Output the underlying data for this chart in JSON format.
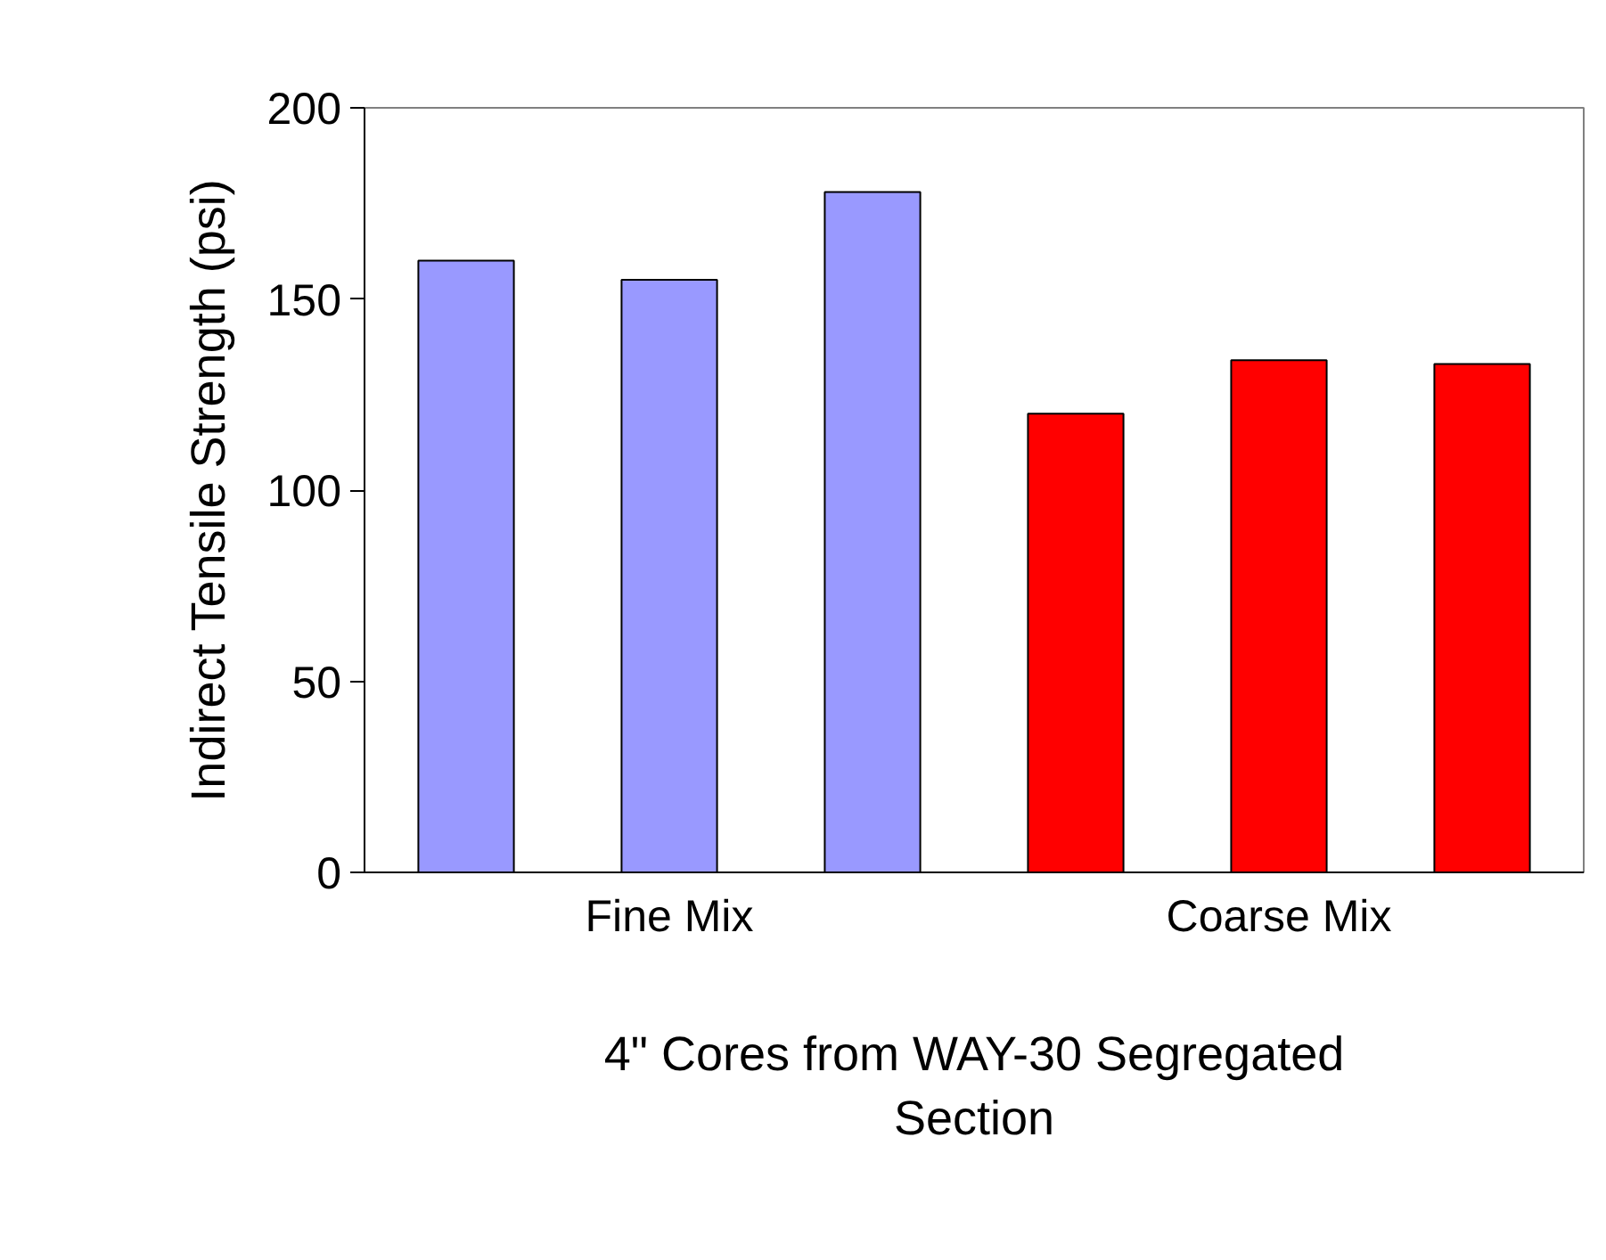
{
  "chart_data": {
    "type": "bar",
    "xlabel": "4\" Cores from WAY-30 Segregated Section",
    "ylabel": "Indirect Tensile Strength (psi)",
    "categories": [
      null,
      "Fine Mix",
      null,
      null,
      "Coarse Mix",
      null
    ],
    "values": [
      160,
      155,
      178,
      120,
      134,
      133
    ],
    "colors": [
      "#9999ff",
      "#9999ff",
      "#9999ff",
      "#ff0000",
      "#ff0000",
      "#ff0000"
    ],
    "ylim": [
      0,
      200
    ],
    "yticks": [
      0,
      50,
      100,
      150,
      200
    ],
    "grid": false
  }
}
